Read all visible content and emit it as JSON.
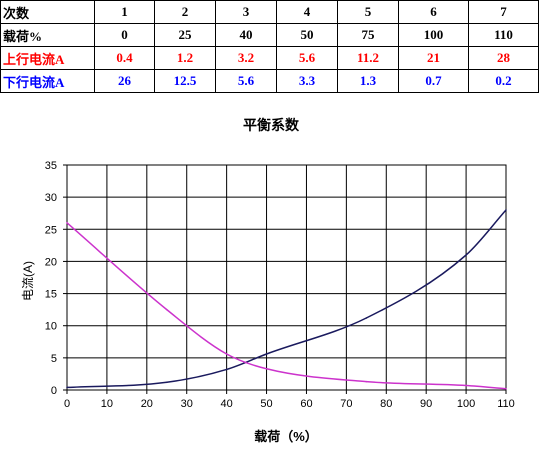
{
  "table": {
    "rows": [
      {
        "key": "times",
        "head": "次数",
        "cells": [
          "1",
          "2",
          "3",
          "4",
          "5",
          "6",
          "7"
        ]
      },
      {
        "key": "load",
        "head": "载荷%",
        "cells": [
          "0",
          "25",
          "40",
          "50",
          "75",
          "100",
          "110"
        ]
      },
      {
        "key": "up",
        "head": "上行电流A",
        "cells": [
          "0.4",
          "1.2",
          "3.2",
          "5.6",
          "11.2",
          "21",
          "28"
        ]
      },
      {
        "key": "down",
        "head": "下行电流A",
        "cells": [
          "26",
          "12.5",
          "5.6",
          "3.3",
          "1.3",
          "0.7",
          "0.2"
        ]
      }
    ]
  },
  "colors": {
    "up_text": "#ff0000",
    "down_text": "#0000ff",
    "up_line": "#1a1a5e",
    "down_line": "#cc33cc"
  },
  "chart_data": {
    "type": "line",
    "title": "平衡系数",
    "xlabel": "载荷（%）",
    "ylabel": "电流(A)",
    "xlim": [
      0,
      110
    ],
    "ylim": [
      0,
      35
    ],
    "xticks": [
      0,
      10,
      20,
      30,
      40,
      50,
      60,
      70,
      80,
      90,
      100,
      110
    ],
    "yticks": [
      0,
      5,
      10,
      15,
      20,
      25,
      30,
      35
    ],
    "grid": true,
    "series": [
      {
        "key": "up",
        "color": "#1a1a5e",
        "x": [
          0,
          25,
          40,
          50,
          75,
          100,
          110
        ],
        "y": [
          0.4,
          1.2,
          3.2,
          5.6,
          11.2,
          21,
          28
        ]
      },
      {
        "key": "down",
        "color": "#cc33cc",
        "x": [
          0,
          25,
          40,
          50,
          75,
          100,
          110
        ],
        "y": [
          26,
          12.5,
          5.6,
          3.3,
          1.3,
          0.7,
          0.2
        ]
      }
    ]
  }
}
